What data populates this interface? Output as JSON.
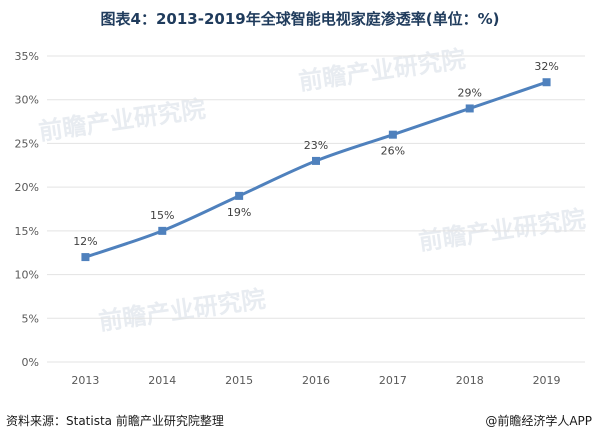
{
  "chart_data": {
    "type": "line",
    "title": "图表4：2013-2019年全球智能电视家庭渗透率(单位：%)",
    "categories": [
      "2013",
      "2014",
      "2015",
      "2016",
      "2017",
      "2018",
      "2019"
    ],
    "series": [
      {
        "values": [
          12,
          15,
          19,
          23,
          26,
          29,
          32
        ],
        "labels": [
          "12%",
          "15%",
          "19%",
          "23%",
          "26%",
          "29%",
          "32%"
        ]
      }
    ],
    "ylim": [
      0,
      35
    ],
    "yticks": [
      0,
      5,
      10,
      15,
      20,
      25,
      30,
      35
    ],
    "ytick_labels": [
      "0%",
      "5%",
      "10%",
      "15%",
      "20%",
      "25%",
      "30%",
      "35%"
    ],
    "grid": true,
    "line_color": "#4f81bd"
  },
  "watermark": {
    "text": "前瞻产业研究院"
  },
  "footer": {
    "source": "资料来源：Statista 前瞻产业研究院整理",
    "brand": "@前瞻经济学人APP"
  }
}
